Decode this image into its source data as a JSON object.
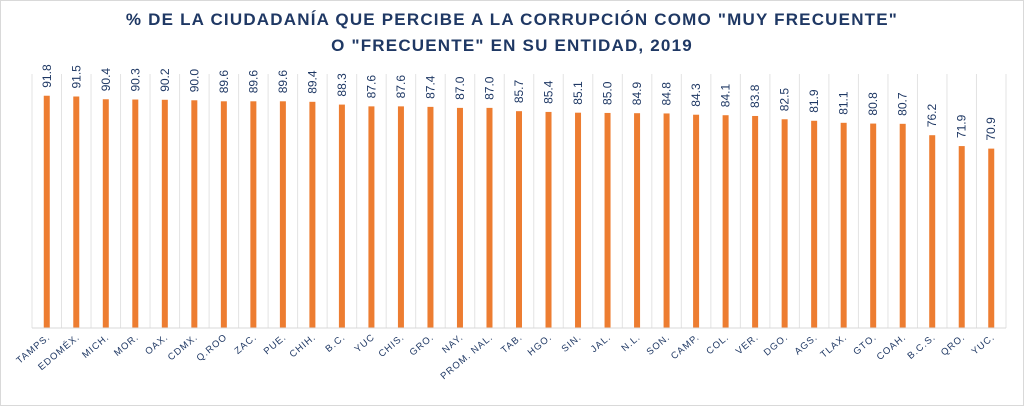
{
  "chart_data": {
    "type": "bar",
    "title_line1": "% DE LA CIUDADANÍA QUE PERCIBE A LA CORRUPCIÓN COMO \"MUY FRECUENTE\"",
    "title_line2": "O \"FRECUENTE\" EN SU ENTIDAD, 2019",
    "xlabel": "",
    "ylabel": "",
    "ylim": [
      0,
      100
    ],
    "grid": "vertical",
    "legend": "none",
    "bar_color": "#ED7D31",
    "label_color": "#1F3864",
    "categories": [
      "TAMPS.",
      "EDOMÉX.",
      "MICH.",
      "MOR.",
      "OAX.",
      "CDMX.",
      "Q.ROO",
      "ZAC.",
      "PUE.",
      "CHIH.",
      "B.C.",
      "YUC",
      "CHIS.",
      "GRO.",
      "NAY.",
      "PROM. NAL.",
      "TAB.",
      "HGO.",
      "SIN.",
      "JAL.",
      "N.L.",
      "SON.",
      "CAMP.",
      "COL.",
      "VER.",
      "DGO.",
      "AGS.",
      "TLAX.",
      "GTO.",
      "COAH.",
      "B.C.S.",
      "QRO.",
      "YUC."
    ],
    "values": [
      91.8,
      91.5,
      90.4,
      90.3,
      90.2,
      90.0,
      89.6,
      89.6,
      89.6,
      89.4,
      88.3,
      87.6,
      87.6,
      87.4,
      87.0,
      87.0,
      85.7,
      85.4,
      85.1,
      85.0,
      84.9,
      84.8,
      84.3,
      84.1,
      83.8,
      82.5,
      81.9,
      81.1,
      80.8,
      80.7,
      76.2,
      71.9,
      70.9
    ],
    "value_labels": [
      "91.8",
      "91.5",
      "90.4",
      "90.3",
      "90.2",
      "90.0",
      "89.6",
      "89.6",
      "89.6",
      "89.4",
      "88.3",
      "87.6",
      "87.6",
      "87.4",
      "87.0",
      "87.0",
      "85.7",
      "85.4",
      "85.1",
      "85.0",
      "84.9",
      "84.8",
      "84.3",
      "84.1",
      "83.8",
      "82.5",
      "81.9",
      "81.1",
      "80.8",
      "80.7",
      "76.2",
      "71.9",
      "70.9"
    ]
  }
}
